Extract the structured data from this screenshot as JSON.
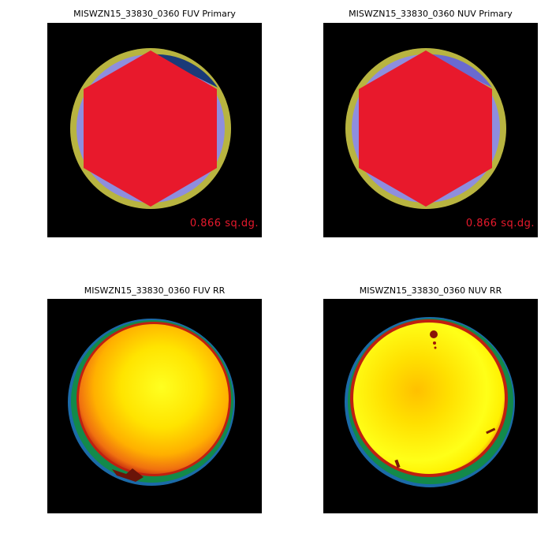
{
  "panels": [
    {
      "title": "MISWZN15_33830_0360 FUV Primary",
      "area_label": "0.866 sq.dg."
    },
    {
      "title": "MISWZN15_33830_0360 NUV Primary",
      "area_label": "0.866 sq.dg."
    },
    {
      "title": "MISWZN15_33830_0360 FUV RR"
    },
    {
      "title": "MISWZN15_33830_0360 NUV RR"
    }
  ],
  "colors": {
    "background": "#000000",
    "field_ring": "#b8b440",
    "coverage": "#8e8ede",
    "dark_coverage": "#1a3a78",
    "hexagon": "#e8192c",
    "label": "#e8192c",
    "rr_edge": "#138a4a",
    "rr_center": "#ffff10"
  }
}
